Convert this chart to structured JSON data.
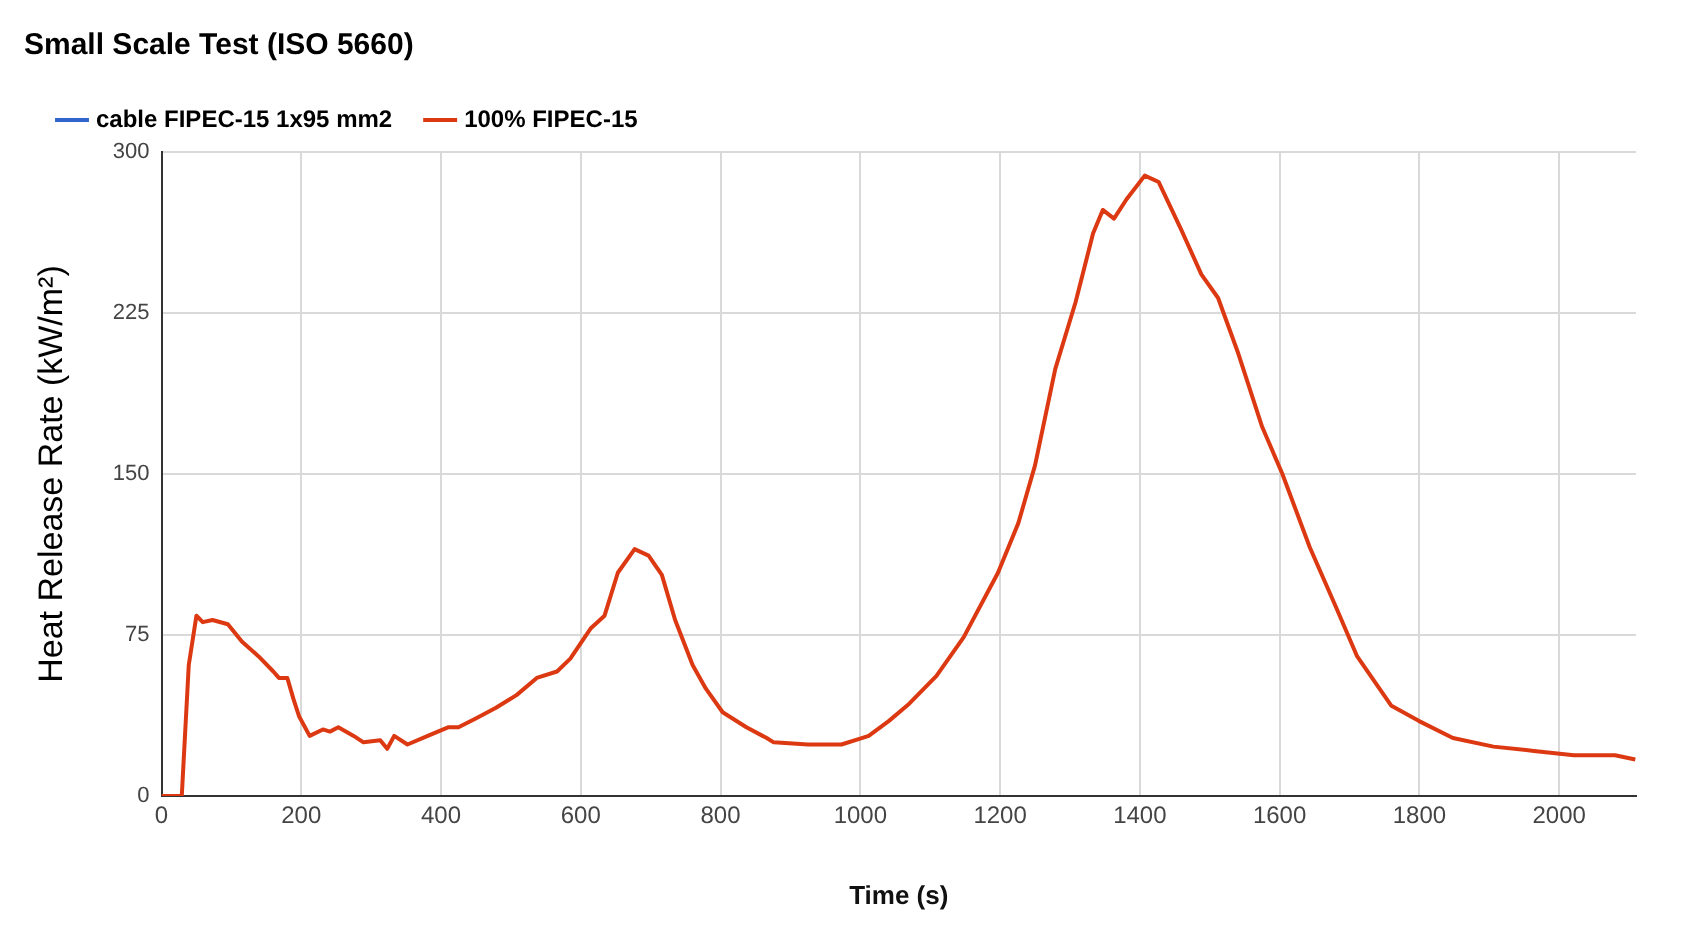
{
  "chart_data": {
    "type": "line",
    "title": "Small Scale Test (ISO 5660)",
    "xlabel": "Time (s)",
    "ylabel": "Heat Release Rate (kW/m²)",
    "xlim": [
      0,
      2110
    ],
    "xticks": [
      0,
      200,
      400,
      600,
      800,
      1000,
      1200,
      1400,
      1600,
      1800,
      2000
    ],
    "ylim": [
      0,
      300
    ],
    "yticks": [
      0,
      75,
      150,
      225,
      300
    ],
    "grid": true,
    "legend": "top left",
    "marker": "none",
    "line_style": "solid",
    "x": [
      0,
      29,
      39,
      50,
      59,
      73,
      95,
      115,
      139,
      160,
      168,
      180,
      189,
      197,
      212,
      231,
      241,
      253,
      275,
      289,
      313,
      323,
      333,
      352,
      381,
      410,
      425,
      449,
      478,
      508,
      537,
      566,
      585,
      614,
      634,
      653,
      677,
      697,
      716,
      735,
      760,
      779,
      803,
      837,
      866,
      876,
      925,
      973,
      1002,
      1012,
      1041,
      1070,
      1109,
      1148,
      1197,
      1226,
      1250,
      1279,
      1308,
      1333,
      1347,
      1363,
      1381,
      1407,
      1427,
      1459,
      1488,
      1512,
      1541,
      1575,
      1604,
      1643,
      1682,
      1711,
      1760,
      1799,
      1848,
      1906,
      1964,
      2021,
      2080,
      2109
    ],
    "series": [
      {
        "name": "cable FIPEC-15 1x95 mm2",
        "color": "#3366cc",
        "values": [
          null,
          null,
          null,
          null,
          null,
          null,
          null,
          null,
          null,
          null,
          null,
          null,
          null,
          null,
          null,
          null,
          null,
          null,
          null,
          null,
          null,
          null,
          null,
          null,
          null,
          null,
          null,
          null,
          null,
          null,
          null,
          null,
          null,
          null,
          null,
          null,
          null,
          null,
          null,
          null,
          null,
          null,
          null,
          null,
          null,
          null,
          null,
          null,
          null,
          null,
          null,
          null,
          null,
          null,
          null,
          null,
          null,
          null,
          null,
          null,
          null,
          null,
          null,
          null,
          null,
          null,
          null,
          null,
          null,
          null,
          null,
          null,
          null,
          null,
          null,
          null,
          null,
          null,
          null,
          null,
          null,
          null
        ]
      },
      {
        "name": "100% FIPEC-15",
        "color": "#dc3912",
        "values": [
          0,
          0,
          61,
          84,
          81,
          82,
          80,
          72,
          65,
          58,
          55,
          55,
          45,
          37,
          28,
          31,
          30,
          32,
          28,
          25,
          26,
          22,
          28,
          24,
          28,
          32,
          32,
          36,
          41,
          47,
          55,
          58,
          64,
          78,
          84,
          104,
          115,
          112,
          103,
          82,
          61,
          50,
          39,
          32,
          27,
          25,
          24,
          24,
          27,
          28,
          35,
          43,
          56,
          74,
          104,
          127,
          154,
          199,
          230,
          262,
          273,
          269,
          278,
          289,
          286,
          264,
          243,
          232,
          206,
          172,
          150,
          116,
          87,
          65,
          42,
          35,
          27,
          23,
          21,
          19,
          19,
          17
        ]
      }
    ]
  }
}
